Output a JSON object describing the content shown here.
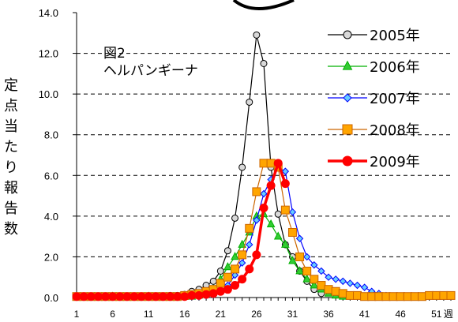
{
  "chart_data": {
    "type": "line",
    "title_lines": [
      "図2",
      "ヘルパンギーナ"
    ],
    "ylabel_chars": [
      "定",
      "点",
      "当",
      "た",
      "り",
      "報",
      "告",
      "数"
    ],
    "xlabel_suffix": "週",
    "ylim": [
      0,
      14
    ],
    "xlim": [
      1,
      53
    ],
    "yticks": [
      "0.0",
      "2.0",
      "4.0",
      "6.0",
      "8.0",
      "10.0",
      "12.0",
      "14.0"
    ],
    "xticks": [
      1,
      6,
      11,
      16,
      21,
      26,
      31,
      36,
      41,
      46,
      51
    ],
    "grid": "horizontal dashed",
    "legend_position": "top-right",
    "series": [
      {
        "name": "2005年",
        "color": "#000000",
        "marker": "circle",
        "fill": "#d9d9d9",
        "x": [
          1,
          2,
          3,
          4,
          5,
          6,
          7,
          8,
          9,
          10,
          11,
          12,
          13,
          14,
          15,
          16,
          17,
          18,
          19,
          20,
          21,
          22,
          23,
          24,
          25,
          26,
          27,
          28,
          29,
          30,
          31,
          32,
          33,
          34,
          35
        ],
        "y": [
          0.05,
          0.05,
          0.05,
          0.05,
          0.05,
          0.05,
          0.05,
          0.05,
          0.05,
          0.05,
          0.05,
          0.05,
          0.05,
          0.1,
          0.1,
          0.15,
          0.3,
          0.4,
          0.6,
          0.8,
          1.3,
          2.3,
          3.9,
          6.4,
          9.6,
          12.9,
          11.5,
          6.4,
          4.1,
          2.6,
          2.0,
          1.3,
          0.8,
          0.4,
          0.2
        ]
      },
      {
        "name": "2006年",
        "color": "#00b000",
        "marker": "triangle",
        "fill": "#33cc33",
        "x": [
          1,
          6,
          11,
          16,
          17,
          18,
          19,
          20,
          21,
          22,
          23,
          24,
          25,
          26,
          27,
          28,
          29,
          30,
          31,
          32,
          33,
          34,
          35,
          36,
          37,
          38
        ],
        "y": [
          0.05,
          0.05,
          0.05,
          0.05,
          0.05,
          0.1,
          0.2,
          0.4,
          0.9,
          1.5,
          2.0,
          2.6,
          3.2,
          4.0,
          4.1,
          3.6,
          3.0,
          2.6,
          1.8,
          1.3,
          0.9,
          0.6,
          0.4,
          0.2,
          0.1,
          0.05
        ]
      },
      {
        "name": "2007年",
        "color": "#0000ff",
        "marker": "diamond",
        "fill": "#66ccff",
        "x": [
          1,
          6,
          11,
          16,
          17,
          18,
          19,
          20,
          21,
          22,
          23,
          24,
          25,
          26,
          27,
          28,
          29,
          30,
          31,
          32,
          33,
          34,
          35,
          36,
          37,
          38,
          39,
          40,
          41,
          42,
          43,
          44
        ],
        "y": [
          0.05,
          0.05,
          0.05,
          0.05,
          0.05,
          0.05,
          0.1,
          0.15,
          0.3,
          0.6,
          1.1,
          1.7,
          2.6,
          3.8,
          5.1,
          5.8,
          6.4,
          6.2,
          4.2,
          2.9,
          2.0,
          1.6,
          1.3,
          1.0,
          0.9,
          0.8,
          0.7,
          0.6,
          0.5,
          0.3,
          0.2,
          0.1
        ]
      },
      {
        "name": "2008年",
        "color": "#cc6600",
        "marker": "square",
        "fill": "#ffa500",
        "x": [
          1,
          2,
          3,
          4,
          5,
          6,
          7,
          8,
          9,
          10,
          11,
          12,
          13,
          14,
          15,
          16,
          17,
          18,
          19,
          20,
          21,
          22,
          23,
          24,
          25,
          26,
          27,
          28,
          29,
          30,
          31,
          32,
          33,
          34,
          35,
          36,
          37,
          38,
          39,
          40,
          41,
          42,
          43,
          44,
          45,
          46,
          47,
          48,
          49,
          50,
          51,
          52,
          53
        ],
        "y": [
          0.05,
          0.05,
          0.05,
          0.05,
          0.05,
          0.05,
          0.05,
          0.05,
          0.05,
          0.05,
          0.05,
          0.05,
          0.05,
          0.05,
          0.05,
          0.1,
          0.15,
          0.2,
          0.3,
          0.4,
          0.7,
          1.0,
          1.4,
          2.1,
          3.4,
          5.2,
          6.6,
          6.6,
          6.4,
          4.3,
          3.2,
          2.0,
          1.3,
          0.9,
          0.6,
          0.4,
          0.3,
          0.2,
          0.1,
          0.1,
          0.05,
          0.05,
          0.05,
          0.05,
          0.05,
          0.05,
          0.05,
          0.05,
          0.05,
          0.1,
          0.1,
          0.1,
          0.1
        ]
      },
      {
        "name": "2009年",
        "color": "#ff0000",
        "marker": "circle",
        "fill": "#ff0000",
        "x": [
          1,
          2,
          3,
          4,
          5,
          6,
          7,
          8,
          9,
          10,
          11,
          12,
          13,
          14,
          15,
          16,
          17,
          18,
          19,
          20,
          21,
          22,
          23,
          24,
          25,
          26,
          27,
          28,
          29,
          30
        ],
        "y": [
          0.05,
          0.05,
          0.05,
          0.05,
          0.05,
          0.05,
          0.05,
          0.05,
          0.05,
          0.05,
          0.05,
          0.05,
          0.05,
          0.05,
          0.05,
          0.05,
          0.1,
          0.1,
          0.15,
          0.2,
          0.3,
          0.4,
          0.6,
          0.9,
          1.4,
          2.1,
          4.4,
          5.5,
          6.6,
          5.6
        ]
      }
    ]
  }
}
